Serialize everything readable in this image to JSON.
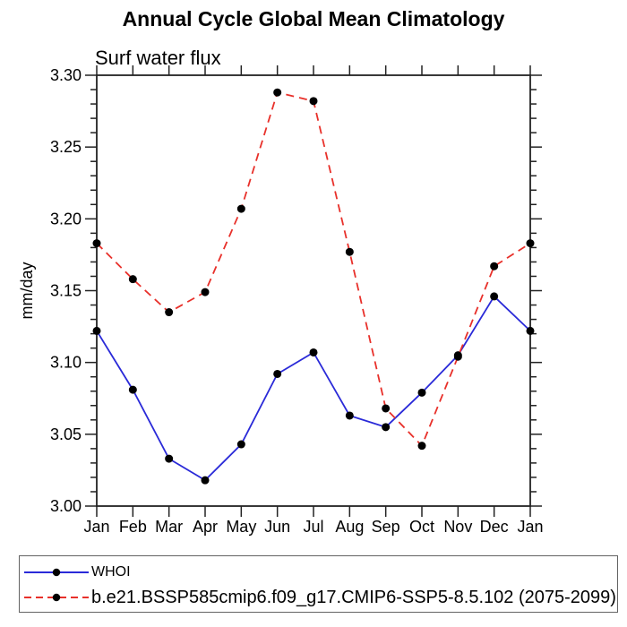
{
  "page": {
    "background": "#ffffff"
  },
  "colors": {
    "axis": "#222222",
    "text": "#000000",
    "legend_border": "#636363",
    "marker": "#000000",
    "series_blue": "#2a2ad8",
    "series_red": "#e8302a"
  },
  "chart_data": {
    "type": "line",
    "title": "Annual Cycle Global Mean Climatology",
    "subtitle": "Surf water flux",
    "xlabel": "",
    "ylabel": "mm/day",
    "categories": [
      "Jan",
      "Feb",
      "Mar",
      "Apr",
      "May",
      "Jun",
      "Jul",
      "Aug",
      "Sep",
      "Oct",
      "Nov",
      "Dec",
      "Jan"
    ],
    "ylim": [
      3.0,
      3.3
    ],
    "ytick_interval": 0.05,
    "yminor_interval": 0.01,
    "ytick_decimals": 2,
    "grid": false,
    "legend_position": "bottom",
    "series": [
      {
        "name": "WHOI",
        "color": "#2a2ad8",
        "line_style": "solid",
        "marker": "circle",
        "marker_color": "#000000",
        "values": [
          3.122,
          3.081,
          3.033,
          3.018,
          3.043,
          3.092,
          3.107,
          3.063,
          3.055,
          3.079,
          3.105,
          3.146,
          3.122
        ]
      },
      {
        "name": "b.e21.BSSP585cmip6.f09_g17.CMIP6-SSP5-8.5.102 (2075-2099)",
        "color": "#e8302a",
        "line_style": "dashed",
        "marker": "circle",
        "marker_color": "#000000",
        "values": [
          3.183,
          3.158,
          3.135,
          3.149,
          3.207,
          3.288,
          3.282,
          3.177,
          3.068,
          3.042,
          3.104,
          3.167,
          3.183
        ]
      }
    ]
  }
}
